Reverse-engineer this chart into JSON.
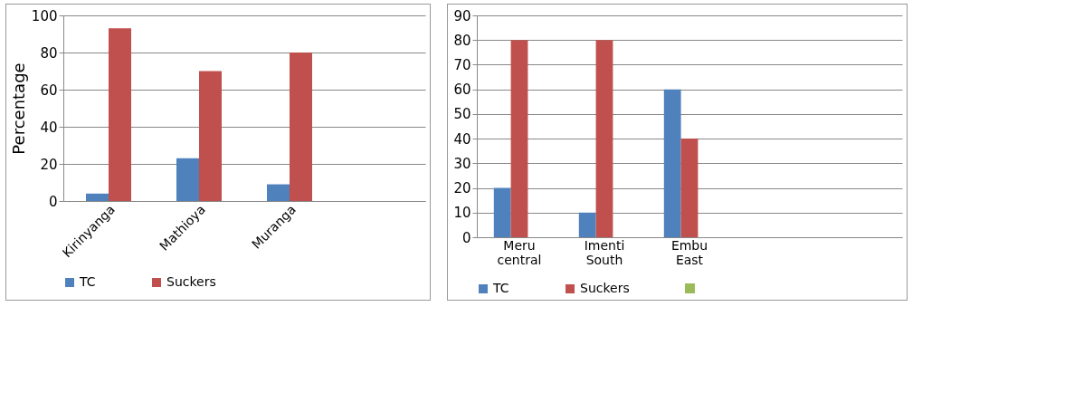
{
  "chart_data": [
    {
      "type": "bar",
      "ylabel": "Percentage",
      "categories": [
        "Kirinyanga",
        "Mathioya",
        "Muranga",
        null
      ],
      "series": [
        {
          "name": "TC",
          "color": "#4f81bd",
          "values": [
            4,
            23,
            9,
            null
          ]
        },
        {
          "name": "Suckers",
          "color": "#c0504d",
          "values": [
            93,
            70,
            80,
            null
          ]
        }
      ],
      "ylim": [
        0,
        100
      ],
      "yticks": [
        0,
        20,
        40,
        60,
        80,
        100
      ],
      "grid": "y",
      "legend": "bottom"
    },
    {
      "type": "bar",
      "categories": [
        "Meru central",
        "Imenti South",
        "Embu East",
        null,
        null
      ],
      "series": [
        {
          "name": "TC",
          "color": "#4f81bd",
          "values": [
            20,
            10,
            60,
            null,
            null
          ]
        },
        {
          "name": "Suckers",
          "color": "#c0504d",
          "values": [
            80,
            80,
            40,
            null,
            null
          ]
        },
        {
          "color": "#9bbb59",
          "values": [
            null,
            null,
            null,
            null,
            null
          ]
        }
      ],
      "ylim": [
        0,
        90
      ],
      "yticks": [
        0,
        10,
        20,
        30,
        40,
        50,
        60,
        70,
        80,
        90
      ],
      "grid": "y",
      "legend": "bottom"
    }
  ]
}
